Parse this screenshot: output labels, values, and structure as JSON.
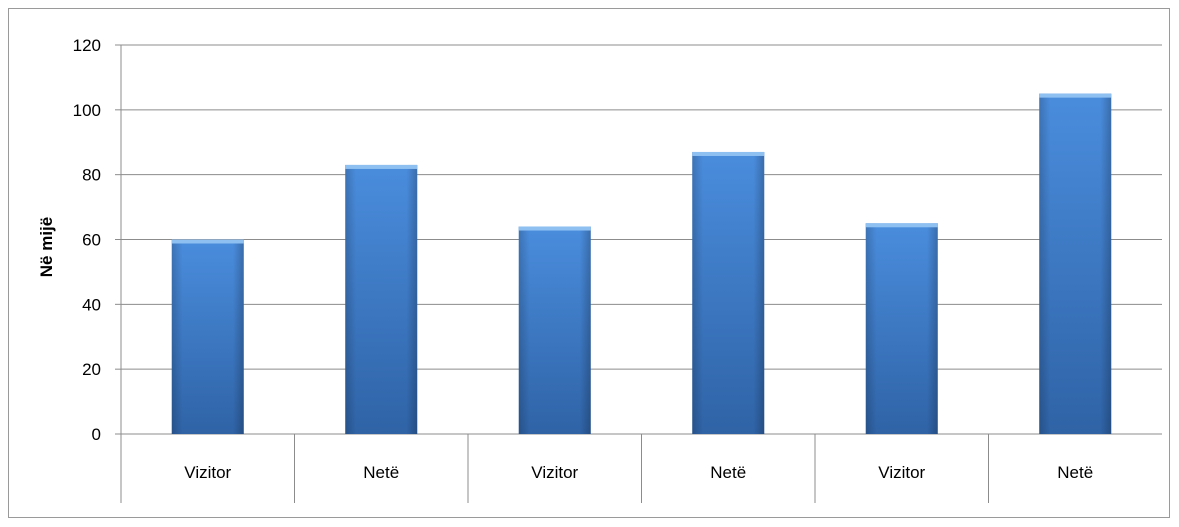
{
  "chart_data": {
    "type": "bar",
    "categories": [
      "Vizitor",
      "Netë",
      "Vizitor",
      "Netë",
      "Vizitor",
      "Netë"
    ],
    "values": [
      60,
      83,
      64,
      87,
      65,
      105
    ],
    "title": "",
    "xlabel": "",
    "ylabel": "Në mijë",
    "ylim": [
      0,
      120
    ],
    "yticks": [
      0,
      20,
      40,
      60,
      80,
      100,
      120
    ],
    "grid": true,
    "legend": "none",
    "bar_color": "#3f7fcf"
  }
}
